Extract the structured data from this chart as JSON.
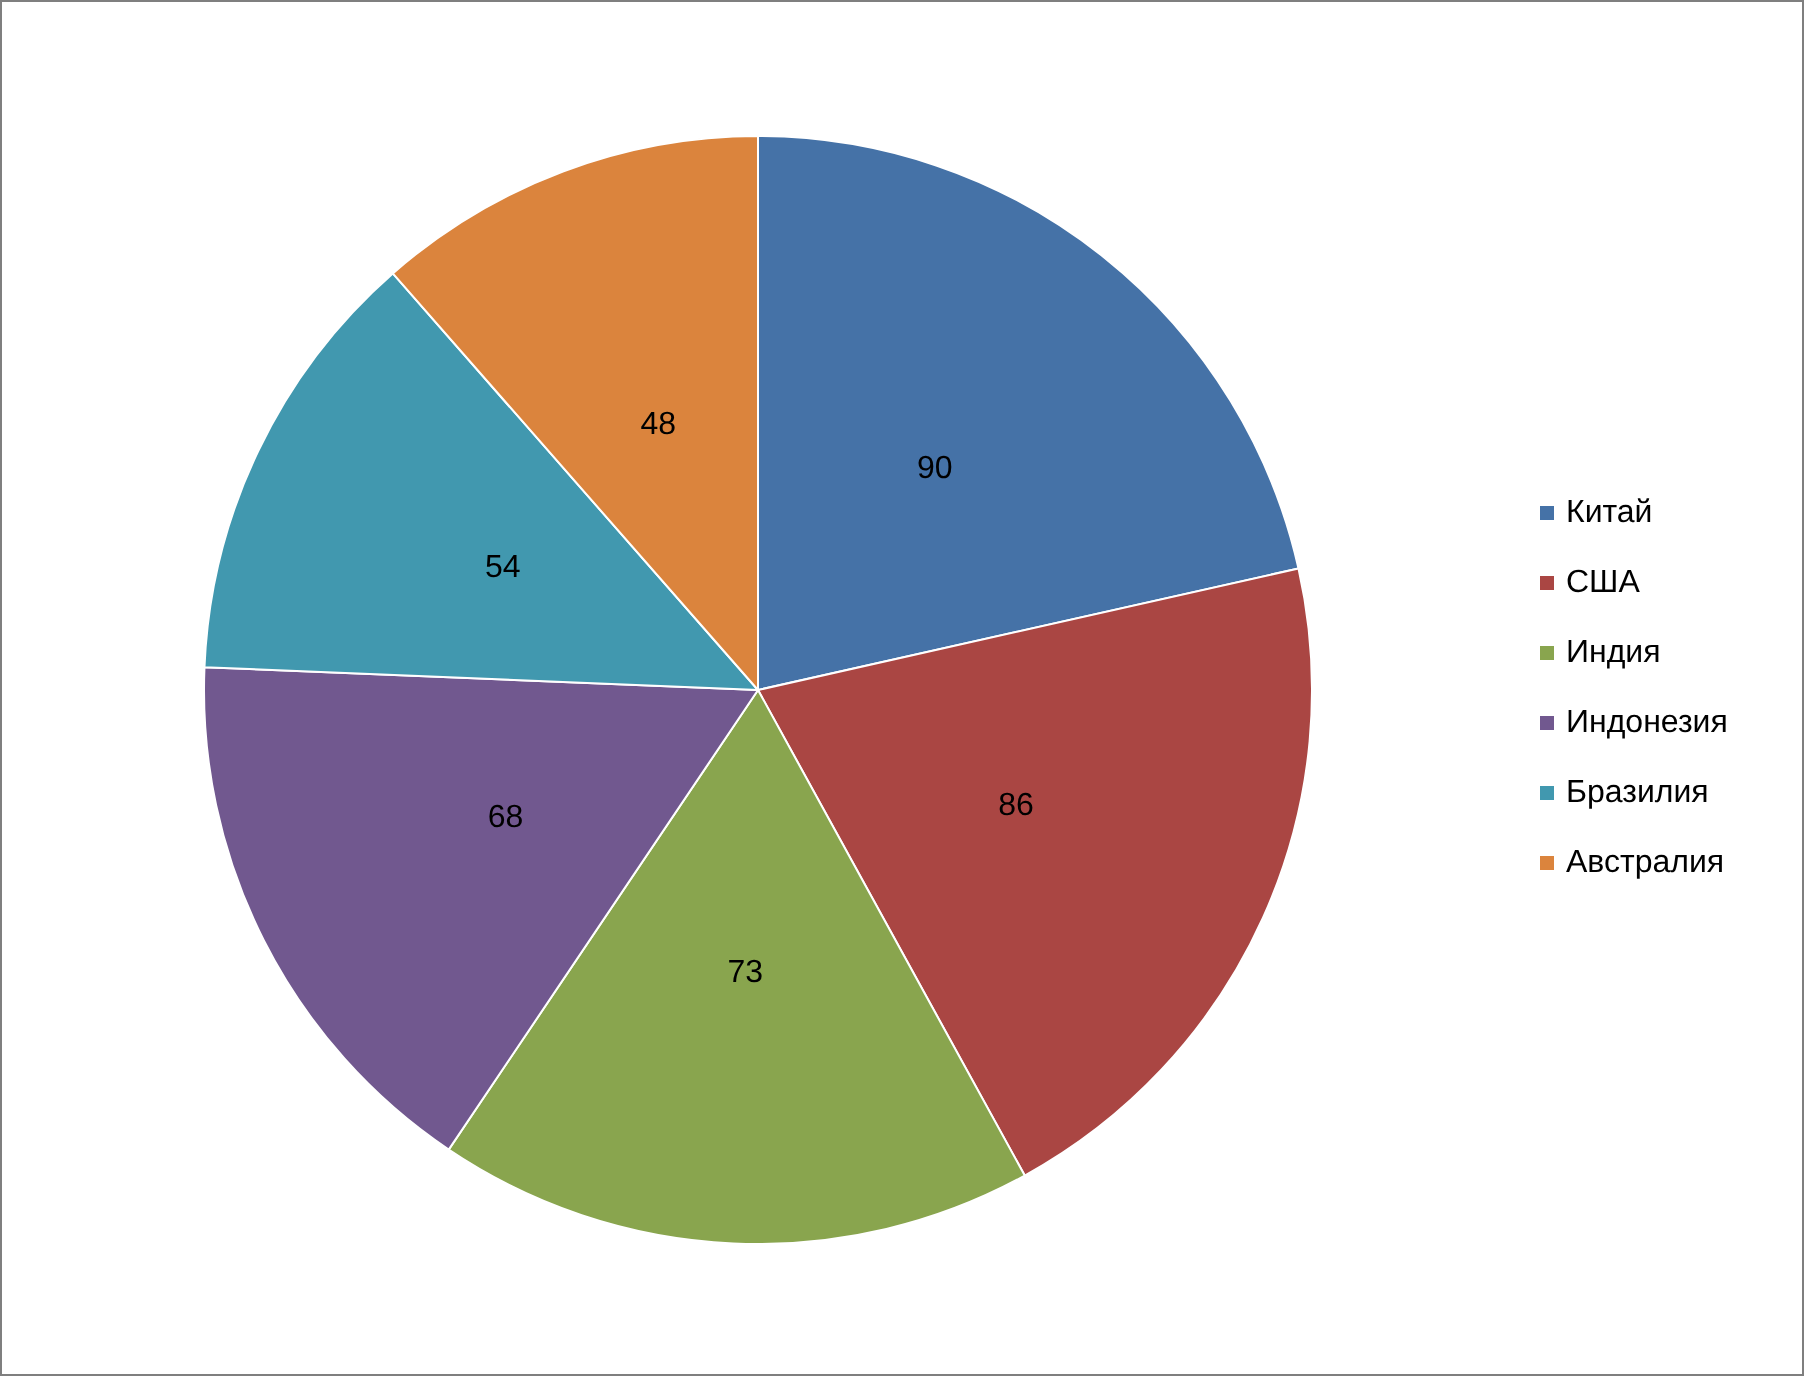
{
  "chart_data": {
    "type": "pie",
    "categories": [
      "Китай",
      "США",
      "Индия",
      "Индонезия",
      "Бразилия",
      "Австралия"
    ],
    "values": [
      90,
      86,
      73,
      68,
      54,
      48
    ],
    "colors": [
      "#4572a7",
      "#aa4643",
      "#89a54e",
      "#71588f",
      "#4198af",
      "#db843d"
    ],
    "data_labels": true,
    "legend": "right"
  }
}
